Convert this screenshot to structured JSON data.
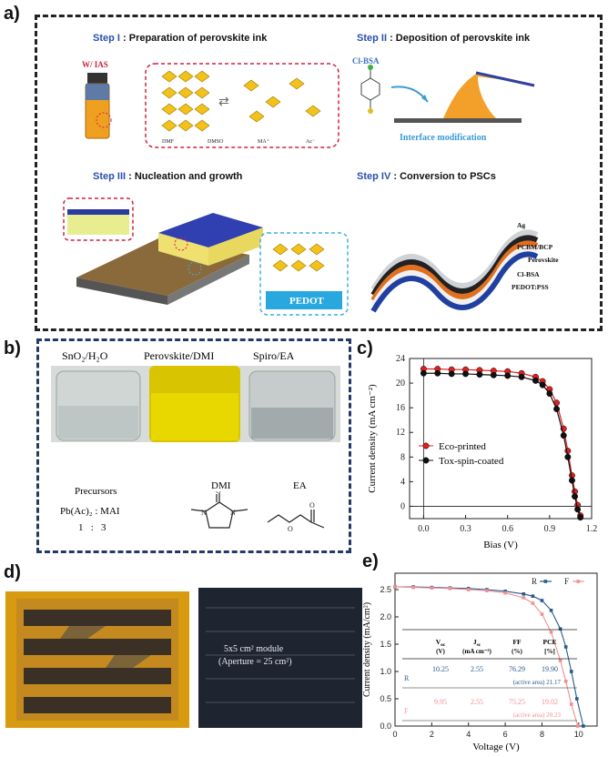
{
  "panel_a": {
    "letter": "a)",
    "step1": {
      "prefix": "Step I",
      "text": " : Preparation of perovskite ink",
      "tag": "W/ IAS",
      "molecules": [
        "DMF",
        "DMSO",
        "MA⁺",
        "Ac⁻"
      ]
    },
    "step2": {
      "prefix": "Step II",
      "text": " : Deposition of perovskite ink",
      "molecule": "Cl-BSA",
      "caption": "Interface modification"
    },
    "step3": {
      "prefix": "Step III",
      "text": " : Nucleation and growth",
      "box_label": "PEDOT"
    },
    "step4": {
      "prefix": "Step IV",
      "text": " : Conversion to PSCs",
      "layers": [
        "Ag",
        "PCBM/BCP",
        "Perovskite",
        "Cl-BSA",
        "PEDOT:PSS"
      ]
    }
  },
  "panel_b": {
    "letter": "b)",
    "vials": [
      "SnO₂/H₂O",
      "Perovskite/DMI",
      "Spiro/EA"
    ],
    "precursors_title": "Precursors",
    "precursors_formula": "Pb(Ac)₂ : MAI",
    "precursors_ratio": "1   :   3",
    "dmi_label": "DMI",
    "ea_label": "EA"
  },
  "panel_c": {
    "letter": "c)"
  },
  "panel_d": {
    "letter": "d)",
    "module_line1": "5x5 cm² module",
    "module_line2": "(Aperture = 25 cm²)"
  },
  "panel_e": {
    "letter": "e)",
    "table": {
      "headers": [
        [
          "V",
          "oc",
          "(V)"
        ],
        [
          "J",
          "sc",
          "(mA cm⁻²)"
        ],
        [
          "FF",
          "",
          "(%)"
        ],
        [
          "PCE",
          "",
          "[%]"
        ]
      ],
      "rows": [
        {
          "label": "R",
          "values": [
            "10.25",
            "2.55",
            "76.29",
            "19.90"
          ],
          "note": "(active area) 21.17"
        },
        {
          "label": "F",
          "values": [
            "9.95",
            "2.55",
            "75.25",
            "19.02"
          ],
          "note": "(active area) 20.23"
        }
      ]
    }
  },
  "chart_data": [
    {
      "type": "line",
      "panel": "c",
      "xlabel": "Bias (V)",
      "ylabel": "Current density (mA cm⁻²)",
      "xlim": [
        -0.1,
        1.2
      ],
      "ylim": [
        -2,
        24
      ],
      "xticks": [
        "0.0",
        "0.3",
        "0.6",
        "0.9",
        "1.2"
      ],
      "yticks": [
        "0",
        "4",
        "8",
        "12",
        "16",
        "20",
        "24"
      ],
      "series": [
        {
          "name": "Eco-printed",
          "color": "#e02020",
          "x": [
            0.0,
            0.1,
            0.2,
            0.3,
            0.4,
            0.5,
            0.6,
            0.7,
            0.8,
            0.85,
            0.9,
            0.95,
            1.0,
            1.03,
            1.06,
            1.08,
            1.1,
            1.12
          ],
          "y": [
            22.3,
            22.3,
            22.2,
            22.2,
            22.1,
            22.0,
            21.9,
            21.6,
            21.0,
            20.3,
            19.0,
            16.8,
            12.6,
            9.0,
            5.0,
            2.4,
            0.2,
            -1.5
          ]
        },
        {
          "name": "Tox-spin-coated",
          "color": "#111111",
          "x": [
            0.0,
            0.1,
            0.2,
            0.3,
            0.4,
            0.5,
            0.6,
            0.7,
            0.8,
            0.85,
            0.9,
            0.95,
            1.0,
            1.03,
            1.06,
            1.08,
            1.1,
            1.12
          ],
          "y": [
            21.6,
            21.6,
            21.5,
            21.5,
            21.4,
            21.3,
            21.2,
            21.0,
            20.4,
            19.7,
            18.3,
            15.8,
            11.5,
            8.0,
            4.2,
            1.6,
            -0.5,
            -1.8
          ]
        }
      ]
    },
    {
      "type": "line",
      "panel": "e",
      "xlabel": "Voltage (V)",
      "ylabel": "Current density (mA/cm²)",
      "xlim": [
        0,
        11
      ],
      "ylim": [
        0,
        2.8
      ],
      "xticks": [
        "0",
        "2",
        "4",
        "6",
        "8",
        "10"
      ],
      "yticks": [
        "0.0",
        "0.5",
        "1.0",
        "1.5",
        "2.0",
        "2.5"
      ],
      "series": [
        {
          "name": "R",
          "color": "#2a5a8a",
          "x": [
            0,
            1,
            2,
            3,
            4,
            5,
            6,
            7,
            7.5,
            8,
            8.5,
            9,
            9.3,
            9.6,
            9.9,
            10.25
          ],
          "y": [
            2.55,
            2.55,
            2.54,
            2.53,
            2.52,
            2.5,
            2.47,
            2.42,
            2.38,
            2.3,
            2.12,
            1.78,
            1.45,
            1.0,
            0.5,
            0.0
          ]
        },
        {
          "name": "F",
          "color": "#f09090",
          "x": [
            0,
            1,
            2,
            3,
            4,
            5,
            6,
            7,
            7.5,
            8,
            8.5,
            9,
            9.3,
            9.6,
            9.95
          ],
          "y": [
            2.55,
            2.54,
            2.53,
            2.52,
            2.5,
            2.48,
            2.44,
            2.35,
            2.25,
            2.05,
            1.72,
            1.2,
            0.82,
            0.4,
            0.0
          ]
        }
      ]
    }
  ]
}
